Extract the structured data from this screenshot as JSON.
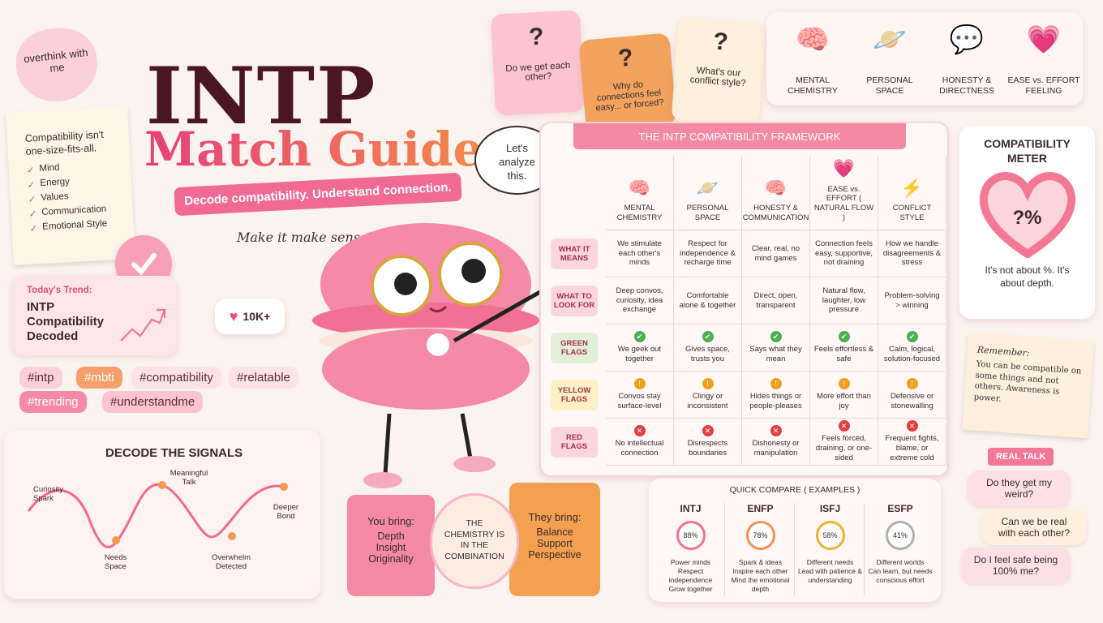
{
  "sticky": "overthink with me",
  "header": {
    "title": "INTP",
    "subtitle": "Match Guide",
    "tagline": "Decode compatibility. Understand connection.",
    "note": "Make it make sense."
  },
  "checklist": {
    "heading": "Compatibility isn't one-size-fits-all.",
    "items": [
      "Mind",
      "Energy",
      "Values",
      "Communication",
      "Emotional Style"
    ]
  },
  "trend": {
    "label": "Today's Trend:",
    "text": "INTP Compatibility Decoded"
  },
  "likes": "10K+",
  "hashtags": [
    "#intp",
    "#mbti",
    "#compatibility",
    "#relatable",
    "#trending",
    "#understandme"
  ],
  "signals": {
    "title": "DECODE THE SIGNALS",
    "points": [
      "Curiosity Spark",
      "Needs Space",
      "Meaningful Talk",
      "Overwhelm Detected",
      "Deeper Bond"
    ]
  },
  "puzzle": {
    "you": {
      "label": "You bring:",
      "items": [
        "Depth",
        "Insight",
        "Originality"
      ]
    },
    "center": "THE CHEMISTRY IS IN THE COMBINATION",
    "they": {
      "label": "They bring:",
      "items": [
        "Balance",
        "Support",
        "Perspective"
      ]
    }
  },
  "questions": [
    "Do we get each other?",
    "Why do connections feel easy... or forced?",
    "What's our conflict style?"
  ],
  "bubble": "Let's analyze this.",
  "topics": [
    "MENTAL CHEMISTRY",
    "PERSONAL SPACE",
    "HONESTY & DIRECTNESS",
    "EASE vs. EFFORT FEELING"
  ],
  "framework": {
    "title": "THE INTP COMPATIBILITY FRAMEWORK",
    "columns": [
      "MENTAL CHEMISTRY",
      "PERSONAL SPACE",
      "HONESTY & COMMUNICATION",
      "EASE vs. EFFORT ( NATURAL FLOW )",
      "CONFLICT STYLE"
    ],
    "rows": [
      {
        "label": "WHAT IT MEANS",
        "cells": [
          "We stimulate each other's minds",
          "Respect for independence & recharge time",
          "Clear, real, no mind games",
          "Connection feels easy, supportive, not draining",
          "How we handle disagreements & stress"
        ]
      },
      {
        "label": "WHAT TO LOOK FOR",
        "cells": [
          "Deep convos, curiosity, idea exchange",
          "Comfortable alone & together",
          "Direct, open, transparent",
          "Natural flow, laughter, low pressure",
          "Problem-solving > winning"
        ]
      },
      {
        "label": "GREEN FLAGS",
        "cells": [
          "We geek out together",
          "Gives space, trusts you",
          "Says what they mean",
          "Feels effortless & safe",
          "Calm, logical, solution-focused"
        ]
      },
      {
        "label": "YELLOW FLAGS",
        "cells": [
          "Convos stay surface-level",
          "Clingy or inconsistent",
          "Hides things or people-pleases",
          "More effort than joy",
          "Defensive or stonewalling"
        ]
      },
      {
        "label": "RED FLAGS",
        "cells": [
          "No intellectual connection",
          "Disrespects boundaries",
          "Dishonesty or manipulation",
          "Feels forced, draining, or one-sided",
          "Frequent fights, blame, or extreme cold"
        ]
      }
    ]
  },
  "meter": {
    "title": "COMPATIBILITY METER",
    "value": "?%",
    "caption": "It's not about %. It's about depth."
  },
  "remember": {
    "label": "Remember:",
    "text": "You can be compatible on some things and not others. Awareness is power."
  },
  "real_talk": {
    "label": "REAL TALK",
    "bubbles": [
      "Do they get my weird?",
      "Can we be real with each other?",
      "Do I feel safe being 100% me?"
    ]
  },
  "compare": {
    "title": "QUICK COMPARE ( EXAMPLES )",
    "items": [
      {
        "type": "INTJ",
        "score": "88%",
        "lines": [
          "Power minds",
          "Respect independence",
          "Grow together"
        ]
      },
      {
        "type": "ENFP",
        "score": "78%",
        "lines": [
          "Spark & ideas",
          "Inspire each other",
          "Mind the emotional depth"
        ]
      },
      {
        "type": "ISFJ",
        "score": "58%",
        "lines": [
          "Different needs",
          "Lead with patience & understanding"
        ]
      },
      {
        "type": "ESFP",
        "score": "41%",
        "lines": [
          "Different worlds",
          "Can learn, but needs conscious effort"
        ]
      }
    ]
  }
}
